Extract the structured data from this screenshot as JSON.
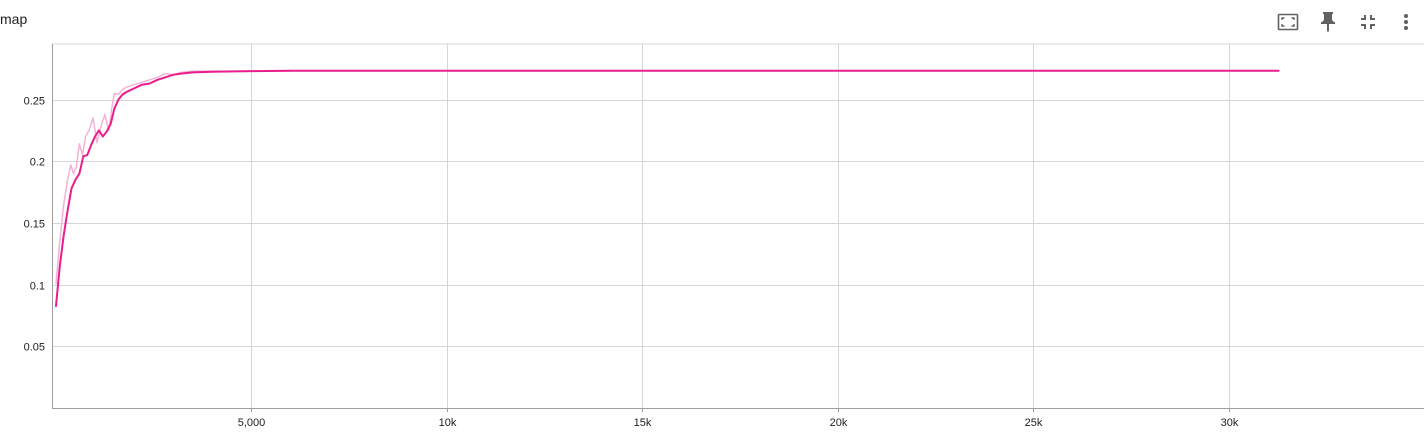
{
  "card": {
    "title": "map"
  },
  "toolbar": {
    "icons": [
      "fit-domain-icon",
      "pin-icon",
      "collapse-icon",
      "more-vert-icon"
    ]
  },
  "colors": {
    "series": "#e91e8c",
    "series_raw": "#f3b3d6",
    "grid": "#d6d6d6",
    "axis": "#9e9e9e",
    "icon": "#616161"
  },
  "chart_data": {
    "type": "line",
    "title": "map",
    "xlabel": "",
    "ylabel": "",
    "xlim": [
      -100,
      35000
    ],
    "ylim": [
      0,
      0.295
    ],
    "grid": true,
    "x_ticks": [
      5000,
      10000,
      15000,
      20000,
      25000,
      30000
    ],
    "x_tick_labels": [
      "5,000",
      "10k",
      "15k",
      "20k",
      "25k",
      "30k"
    ],
    "y_ticks": [
      0.05,
      0.1,
      0.15,
      0.2,
      0.25
    ],
    "y_tick_labels": [
      "0.05",
      "0.1",
      "0.15",
      "0.2",
      "0.25"
    ],
    "series": [
      {
        "role": "smoothed",
        "x": [
          0,
          100,
          200,
          300,
          400,
          500,
          600,
          700,
          800,
          900,
          1000,
          1100,
          1200,
          1300,
          1400,
          1500,
          1600,
          1700,
          1800,
          2000,
          2200,
          2400,
          2600,
          2800,
          3000,
          3200,
          3500,
          4000,
          5000,
          6000,
          10000,
          15000,
          20000,
          25000,
          31300
        ],
        "y": [
          0.082,
          0.115,
          0.14,
          0.16,
          0.178,
          0.185,
          0.19,
          0.204,
          0.205,
          0.213,
          0.22,
          0.225,
          0.22,
          0.224,
          0.23,
          0.243,
          0.25,
          0.254,
          0.256,
          0.259,
          0.262,
          0.263,
          0.266,
          0.268,
          0.27,
          0.271,
          0.272,
          0.2725,
          0.273,
          0.2733,
          0.2733,
          0.2733,
          0.2733,
          0.2733,
          0.2733
        ]
      },
      {
        "role": "raw",
        "x": [
          0,
          100,
          200,
          300,
          380,
          450,
          520,
          600,
          680,
          760,
          850,
          950,
          1050,
          1150,
          1250,
          1350,
          1450,
          1500,
          1600,
          1700,
          1800,
          2000,
          2200,
          2400,
          2600,
          2800,
          3000,
          3200,
          3500,
          4000,
          5000,
          6000
        ],
        "y": [
          0.1,
          0.135,
          0.165,
          0.185,
          0.197,
          0.19,
          0.195,
          0.214,
          0.205,
          0.22,
          0.225,
          0.235,
          0.215,
          0.228,
          0.238,
          0.225,
          0.247,
          0.255,
          0.254,
          0.258,
          0.26,
          0.262,
          0.264,
          0.266,
          0.268,
          0.271,
          0.27,
          0.272,
          0.273,
          0.273,
          0.273,
          0.273
        ]
      }
    ]
  }
}
